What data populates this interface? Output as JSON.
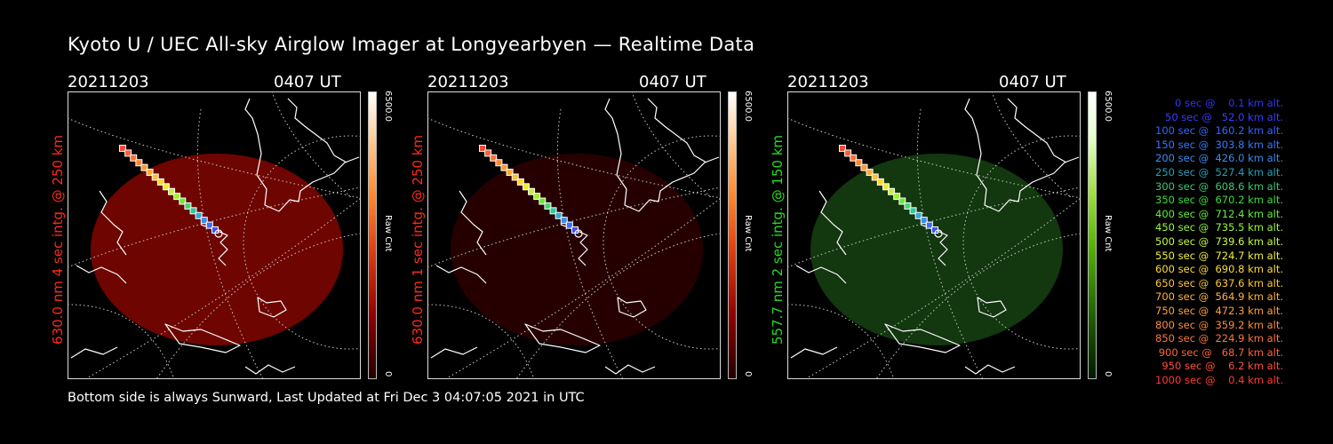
{
  "title": "Kyoto U / UEC All-sky Airglow Imager at Longyearbyen — Realtime Data",
  "footer": "Bottom side is always Sunward, Last Updated at Fri Dec  3 04:07:05 2021 in UTC",
  "panels": [
    {
      "date": "20211203",
      "time": "0407 UT",
      "ylabel": "630.0 nm 4 sec intg. @ 250 km",
      "label_color": "#ff2a1a",
      "cbar_max": "6500.0",
      "cbar_min": "0",
      "cbar_unit": "Raw Cnt",
      "disk_color": "#7a0500",
      "disk_opacity": 0.9
    },
    {
      "date": "20211203",
      "time": "0407 UT",
      "ylabel": "630.0 nm 1 sec intg. @ 250 km",
      "label_color": "#ff2a1a",
      "cbar_max": "6500.0",
      "cbar_min": "0",
      "cbar_unit": "Raw Cnt",
      "disk_color": "#2a0000",
      "disk_opacity": 0.9
    },
    {
      "date": "20211203",
      "time": "0407 UT",
      "ylabel": "557.7 nm 2 sec intg. @ 150 km",
      "label_color": "#22dd22",
      "cbar_max": "6500.0",
      "cbar_min": "0",
      "cbar_unit": "Raw Cnt",
      "disk_color": "#143a10",
      "disk_opacity": 0.95
    }
  ],
  "legend": [
    {
      "text": "0 sec @    0.1 km alt.",
      "color": "#3232ff"
    },
    {
      "text": "50 sec @   52.0 km alt.",
      "color": "#3c3cff"
    },
    {
      "text": "100 sec @  160.2 km alt.",
      "color": "#3264ff"
    },
    {
      "text": "150 sec @  303.8 km alt.",
      "color": "#3878ff"
    },
    {
      "text": "200 sec @  426.0 km alt.",
      "color": "#3a8cf0"
    },
    {
      "text": "250 sec @  527.4 km alt.",
      "color": "#2aa0b4"
    },
    {
      "text": "300 sec @  608.6 km alt.",
      "color": "#3cc878"
    },
    {
      "text": "350 sec @  670.2 km alt.",
      "color": "#3cdc3c"
    },
    {
      "text": "400 sec @  712.4 km alt.",
      "color": "#64f03c"
    },
    {
      "text": "450 sec @  735.5 km alt.",
      "color": "#96fa3c"
    },
    {
      "text": "500 sec @  739.6 km alt.",
      "color": "#c8fa3c"
    },
    {
      "text": "550 sec @  724.7 km alt.",
      "color": "#f0f03c"
    },
    {
      "text": "600 sec @  690.8 km alt.",
      "color": "#ffdc3c"
    },
    {
      "text": "650 sec @  637.6 km alt.",
      "color": "#ffc83c"
    },
    {
      "text": "700 sec @  564.9 km alt.",
      "color": "#ffb43c"
    },
    {
      "text": "750 sec @  472.3 km alt.",
      "color": "#ffa03c"
    },
    {
      "text": "800 sec @  359.2 km alt.",
      "color": "#ff8c3c"
    },
    {
      "text": "850 sec @  224.9 km alt.",
      "color": "#ff783c"
    },
    {
      "text": "900 sec @   68.7 km alt.",
      "color": "#ff643c"
    },
    {
      "text": "950 sec @    6.2 km alt.",
      "color": "#ff503c"
    },
    {
      "text": "1000 sec @    0.4 km alt.",
      "color": "#ff3c32"
    }
  ],
  "track_colors": [
    "#ff4a32",
    "#ff5c32",
    "#ff7032",
    "#ff8432",
    "#ff9832",
    "#ffac32",
    "#ffc032",
    "#ffd632",
    "#f0ec32",
    "#c8f032",
    "#9cf032",
    "#6ee640",
    "#44d86a",
    "#32c8a0",
    "#32aad2",
    "#3a8cf0",
    "#3c6eff",
    "#3c50ff"
  ]
}
